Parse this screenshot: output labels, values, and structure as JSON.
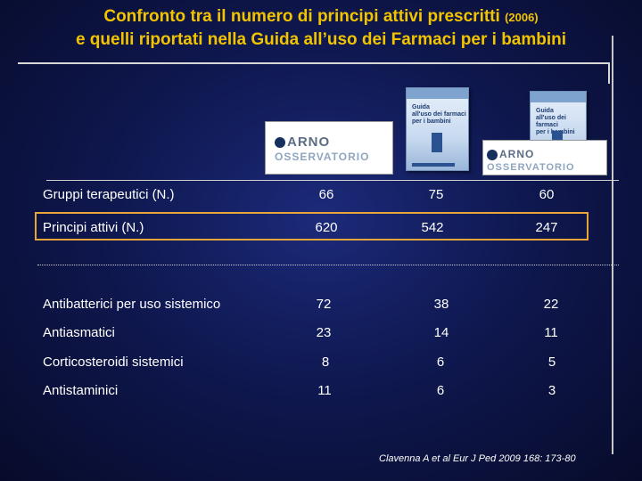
{
  "title": {
    "line1_main": "Confronto tra il numero di principi attivi prescritti ",
    "line1_year": "(2006)",
    "line2": "e quelli riportati nella Guida all’uso dei Farmaci per i bambini"
  },
  "logos": {
    "brand_top": "ARNO",
    "brand_bottom": "OSSERVATORIO"
  },
  "books": {
    "title_lines": [
      "Guida",
      "all'uso dei farmaci",
      "per i bambini"
    ]
  },
  "summary_rows": [
    {
      "label": "Gruppi terapeutici (N.)",
      "values": [
        "66",
        "75",
        "60"
      ]
    },
    {
      "label": "Principi attivi (N.)",
      "values": [
        "620",
        "542",
        "247"
      ]
    }
  ],
  "detail_rows": [
    {
      "label": "Antibatterici per uso sistemico",
      "values": [
        "72",
        "38",
        "22"
      ]
    },
    {
      "label": "Antiasmatici",
      "values": [
        "23",
        "14",
        "11"
      ]
    },
    {
      "label": "Corticosteroidi sistemici",
      "values": [
        "8",
        "6",
        "5"
      ]
    },
    {
      "label": "Antistaminici",
      "values": [
        "11",
        "6",
        "3"
      ]
    }
  ],
  "source": "Clavenna A et al Eur J Ped 2009 168: 173-80",
  "colors": {
    "title": "#f2c400",
    "highlight_border": "#e8a53a",
    "background": "#0f1850"
  }
}
